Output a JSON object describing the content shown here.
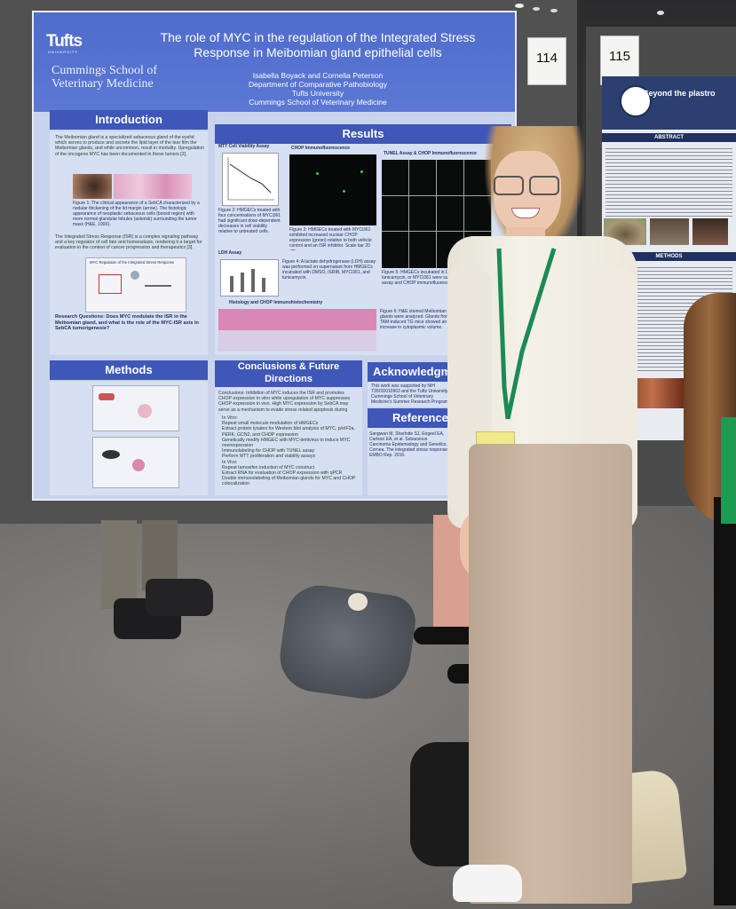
{
  "poster": {
    "logo": "Tufts",
    "logo_sub": "UNIVERSITY",
    "school": "Cummings School of Veterinary Medicine",
    "title": "The role of MYC in the regulation of the Integrated Stress Response in Meibomian gland epithelial cells",
    "authors_line1": "Isabella Boyack and Cornelia Peterson",
    "authors_line2": "Department of Comparative Pathobiology",
    "authors_line3": "Tufts University",
    "authors_line4": "Cummings School of Veterinary Medicine",
    "sections": {
      "introduction": "Introduction",
      "results": "Results",
      "methods": "Methods",
      "conclusions": "Conclusions & Future Directions",
      "acknowledgments": "Acknowledgm",
      "references": "Reference"
    },
    "intro_text": "The Meibomian gland is a specialized sebaceous gland of the eyelid which serves to produce and secrete the lipid layer of the tear film the Meibomian glands, and while uncommon, result in mortality. Upregulation of the oncogene MYC has been documented in these tumors [2].",
    "fig1_caption": "Figure 1: The clinical appearance of a SebCA characterized by a nodular thickening of the lid margin (arrow). The histologic appearance of neoplastic sebaceous cells (boxed region) with more normal glandular lobules (asterisk) surrounding the tumor mass (H&E, 100X).",
    "isr_text": "The Integrated Stress Response (ISR) is a complex signaling pathway and a key regulator of cell fate and homeostasis, rendering it a target for evaluation in the context of cancer progression and therapeutics [3].",
    "isr_diagram_title": "MYC Regulation of the Integrated Stress Response",
    "research_q": "Research Questions: Does MYC modulate the ISR in the Meibomian gland, and what is the role of the MYC-ISR axis in SebCA tumorigenesis?",
    "mtt_title": "MTT Cell Viability Assay",
    "chop_if_title": "CHOP Immunofluorescence",
    "tunel_title": "TUNEL Assay & CHOP Immunofluorescence",
    "ldh_title": "LDH Assay",
    "histo_title": "Histology and CHOP Immunohistochemistry",
    "fig2_caption": "Figure 2: HMGECs treated with four concentrations of MYCi361 had significant dose-dependent decreases in cell viability relative to untreated cells.",
    "fig3_caption": "Figure 3: HMGECs treated with MYCi361 exhibited increased nuclear CHOP expression (green) relative to both vehicle control and an ISR inhibitor. Scale bar 20 um.",
    "fig4_caption": "Figure 4: A lactate dehydrogenase (LDH) assay was performed on supernatant from HMGECs incubated with DMSO, ISRIB, MYCi361, and tunicamycin.",
    "fig5_caption": "Figure 5: HMGECs incubated in DMSO, ISRIB, tunicamycin, or MYCi361 were subject to a TUNEL assay and CHOP immunofluorescence.",
    "fig6_caption": "Figure 6: H&E stained Meibomian glands were analyzed. Glands from TAM-induced TG mice showed an increase in cytoplasmic volume.",
    "conclusions_text": "Conclusions: Inhibition of MYC induces the ISR and promotes CHOP expression in vitro while upregulation of MYC suppresses CHOP expression in vivo. High MYC expression by SebCA may serve as a mechanism to evade stress related apoptosis during tumorigenesis.",
    "future_items": [
      "In Vitro:",
      "Repeat small molecule modulation of HMGECs",
      "Extract protein lysates for Western blot analysis of MYC, p/eIF2a, PERK, GCN2, and CHOP expression",
      "Genetically modify HMGEC with MYC-lentivirus to induce MYC overexpression",
      "Immunolabeling for CHOP with TUNEL assay",
      "Perform MTT proliferation and viability assays",
      "In Vivo:",
      "Repeat tamoxifen induction of MYC construct",
      "Extract RNA for evaluation of CHOP expression with qPCR",
      "Double immunolabeling of Meibomian glands for MYC and CHOP colocalization"
    ],
    "ack_text": "This work was supported by NIH T35OD010963 and the Tufts University Cummings School of Veterinary Medicine's Summer Research Program.",
    "ref_text": "Sangwan M, Sharlotte SJ, Engeel EA, Carlson EA, et al. Sebaceous Carcinoma Epidemiology and Genetics. Cornea. The integrated stress response. EMBO Rep. 2016."
  },
  "numbers": {
    "left": "114",
    "right": "115"
  },
  "poster2": {
    "title": "Beyond the plastro",
    "abstract": "ABSTRACT",
    "methods": "METHODS"
  },
  "colors": {
    "poster_blue": "#3f57b8",
    "poster_bg": "#c9d4ec",
    "shirt": "#f2efe6",
    "pants": "#c2ad98",
    "lanyard": "#1a8a56"
  }
}
